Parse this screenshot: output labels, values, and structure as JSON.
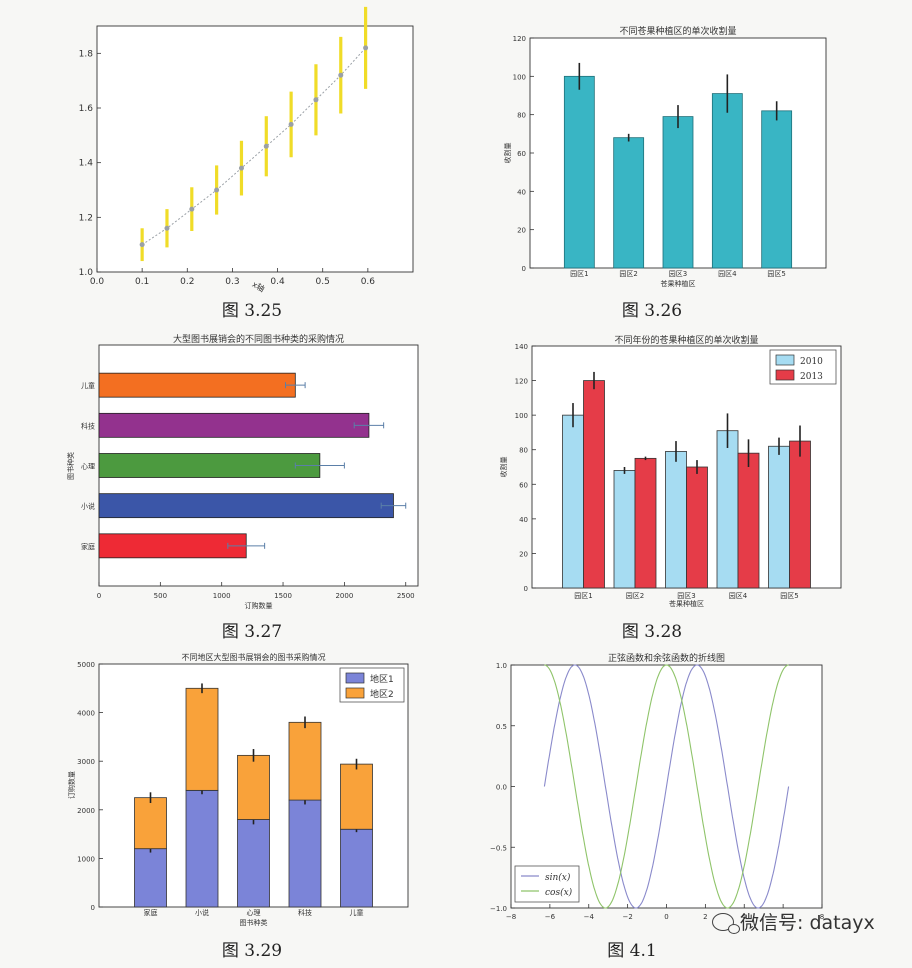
{
  "captions": [
    "图 3.25",
    "图 3.26",
    "图 3.27",
    "图 3.28",
    "图 3.29",
    "图 4.1"
  ],
  "watermark": "微信号: datayx",
  "chart_data": [
    {
      "type": "line",
      "title": "",
      "x": [
        0.1,
        0.155,
        0.21,
        0.265,
        0.32,
        0.375,
        0.43,
        0.485,
        0.54,
        0.595
      ],
      "values": [
        1.1,
        1.16,
        1.23,
        1.3,
        1.38,
        1.46,
        1.54,
        1.63,
        1.72,
        1.82
      ],
      "errors": [
        0.06,
        0.07,
        0.08,
        0.09,
        0.1,
        0.11,
        0.12,
        0.13,
        0.14,
        0.15
      ],
      "xlabel": "x轴",
      "ylabel": "",
      "xlim": [
        0.0,
        0.7
      ],
      "ylim": [
        1.0,
        1.9
      ],
      "xticks": [
        "0.0",
        "0.1",
        "0.2",
        "0.3",
        "0.4",
        "0.5",
        "0.6"
      ],
      "yticks": [
        "1.0",
        "1.2",
        "1.4",
        "1.6",
        "1.8"
      ],
      "line_color": "#9aa0a6",
      "error_color": "#f0dc28",
      "grid": false
    },
    {
      "type": "bar",
      "title": "不同苍果种植区的单次收割量",
      "categories": [
        "园区1",
        "园区2",
        "园区3",
        "园区4",
        "园区5"
      ],
      "values": [
        100,
        68,
        79,
        91,
        82
      ],
      "errors": [
        7,
        2,
        6,
        10,
        5
      ],
      "xlabel": "苍果种植区",
      "ylabel": "收割量",
      "ylim": [
        0,
        120
      ],
      "yticks": [
        "0",
        "20",
        "40",
        "60",
        "80",
        "100",
        "120"
      ],
      "color": "#39b5c4"
    },
    {
      "type": "bar",
      "orientation": "horizontal",
      "title": "大型图书展销会的不同图书种类的采购情况",
      "categories": [
        "家庭",
        "小说",
        "心理",
        "科技",
        "儿童"
      ],
      "values": [
        1200,
        2400,
        1800,
        2200,
        1600
      ],
      "errors": [
        150,
        100,
        200,
        120,
        80
      ],
      "colors": [
        "#ee2a35",
        "#3b56a8",
        "#4c9a3f",
        "#93328e",
        "#f36f21"
      ],
      "xlabel": "订购数量",
      "ylabel": "图书种类",
      "xlim": [
        0,
        2600
      ],
      "xticks": [
        "0",
        "500",
        "1000",
        "1500",
        "2000",
        "2500"
      ]
    },
    {
      "type": "bar",
      "title": "不同年份的苍果种植区的单次收割量",
      "categories": [
        "园区1",
        "园区2",
        "园区3",
        "园区4",
        "园区5"
      ],
      "series": [
        {
          "name": "2010",
          "values": [
            100,
            68,
            79,
            91,
            82
          ],
          "errors": [
            7,
            2,
            6,
            10,
            5
          ],
          "color": "#a6dcf2"
        },
        {
          "name": "2013",
          "values": [
            120,
            75,
            70,
            78,
            85
          ],
          "errors": [
            5,
            1,
            4,
            8,
            9
          ],
          "color": "#e53c48"
        }
      ],
      "xlabel": "苍果种植区",
      "ylabel": "收割量",
      "ylim": [
        0,
        140
      ],
      "yticks": [
        "0",
        "20",
        "40",
        "60",
        "80",
        "100",
        "120",
        "140"
      ],
      "legend": "top-right"
    },
    {
      "type": "bar",
      "stacked": true,
      "title": "不同地区大型图书展销会的图书采购情况",
      "categories": [
        "家庭",
        "小说",
        "心理",
        "科技",
        "儿童"
      ],
      "series": [
        {
          "name": "地区1",
          "values": [
            1200,
            2400,
            1800,
            2200,
            1600
          ],
          "errors": [
            80,
            80,
            100,
            90,
            60
          ],
          "color": "#7b84d8"
        },
        {
          "name": "地区2",
          "values": [
            1050,
            2100,
            1320,
            1600,
            1340
          ],
          "errors": [
            110,
            100,
            130,
            120,
            110
          ],
          "color": "#f9a23a"
        }
      ],
      "xlabel": "图书种类",
      "ylabel": "订购数量",
      "ylim": [
        0,
        5000
      ],
      "yticks": [
        "0",
        "1000",
        "2000",
        "3000",
        "4000",
        "5000"
      ],
      "legend": "top-right"
    },
    {
      "type": "line",
      "title": "正弦函数和余弦函数的折线图",
      "x_range": [
        -6.283,
        6.283
      ],
      "series": [
        {
          "name": "sin(x)",
          "function": "sin",
          "color": "#8a8acb"
        },
        {
          "name": "cos(x)",
          "function": "cos",
          "color": "#8fc46a"
        }
      ],
      "xlim": [
        -8,
        8
      ],
      "ylim": [
        -1.0,
        1.0
      ],
      "xticks": [
        "−8",
        "−6",
        "−4",
        "−2",
        "0",
        "2",
        "4",
        "6",
        "8"
      ],
      "yticks": [
        "−1.0",
        "−0.5",
        "0.0",
        "0.5",
        "1.0"
      ],
      "legend": "bottom-left"
    }
  ]
}
